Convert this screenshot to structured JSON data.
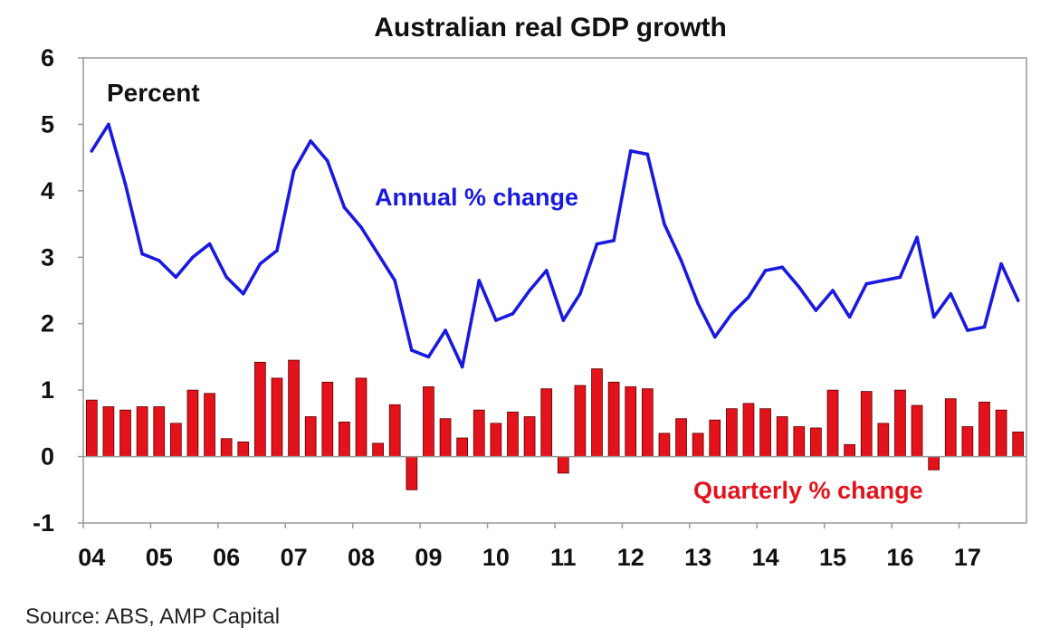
{
  "chart_data": {
    "type": "bar",
    "title": "Australian real GDP growth",
    "unit_label": "Percent",
    "source": "Source: ABS, AMP Capital",
    "ylim": [
      -1,
      6
    ],
    "yticks": [
      "-1",
      "0",
      "1",
      "2",
      "3",
      "4",
      "5",
      "6"
    ],
    "xticks": [
      "04",
      "05",
      "06",
      "07",
      "08",
      "09",
      "10",
      "11",
      "12",
      "13",
      "14",
      "15",
      "16",
      "17"
    ],
    "grid": false,
    "colors": {
      "annual": "#1a1adf",
      "quarterly": "#e3121b",
      "bar_edge": "#5a0000",
      "axis": "#999999"
    },
    "series": [
      {
        "name": "Annual % change",
        "type": "line",
        "x": [
          "2004 Q1",
          "2004 Q2",
          "2004 Q3",
          "2004 Q4",
          "2005 Q1",
          "2005 Q2",
          "2005 Q3",
          "2005 Q4",
          "2006 Q1",
          "2006 Q2",
          "2006 Q3",
          "2006 Q4",
          "2007 Q1",
          "2007 Q2",
          "2007 Q3",
          "2007 Q4",
          "2008 Q1",
          "2008 Q2",
          "2008 Q3",
          "2008 Q4",
          "2009 Q1",
          "2009 Q2",
          "2009 Q3",
          "2009 Q4",
          "2010 Q1",
          "2010 Q2",
          "2010 Q3",
          "2010 Q4",
          "2011 Q1",
          "2011 Q2",
          "2011 Q3",
          "2011 Q4",
          "2012 Q1",
          "2012 Q2",
          "2012 Q3",
          "2012 Q4",
          "2013 Q1",
          "2013 Q2",
          "2013 Q3",
          "2013 Q4",
          "2014 Q1",
          "2014 Q2",
          "2014 Q3",
          "2014 Q4",
          "2015 Q1",
          "2015 Q2",
          "2015 Q3",
          "2015 Q4",
          "2016 Q1",
          "2016 Q2",
          "2016 Q3",
          "2016 Q4",
          "2017 Q1",
          "2017 Q2",
          "2017 Q3",
          "2017 Q4"
        ],
        "values": [
          4.6,
          5.0,
          4.1,
          3.05,
          2.95,
          2.7,
          3.0,
          3.2,
          2.7,
          2.45,
          2.9,
          3.1,
          4.3,
          4.75,
          4.45,
          3.75,
          3.45,
          3.05,
          2.65,
          1.6,
          1.5,
          1.9,
          1.35,
          2.65,
          2.05,
          2.15,
          2.5,
          2.8,
          2.05,
          2.45,
          3.2,
          3.25,
          4.6,
          4.55,
          3.5,
          2.95,
          2.3,
          1.8,
          2.15,
          2.4,
          2.8,
          2.85,
          2.55,
          2.2,
          2.5,
          2.1,
          2.6,
          2.65,
          2.7,
          3.3,
          2.1,
          2.45,
          1.9,
          1.95,
          2.9,
          2.35
        ]
      },
      {
        "name": "Quarterly % change",
        "type": "bar",
        "x": [
          "2004 Q1",
          "2004 Q2",
          "2004 Q3",
          "2004 Q4",
          "2005 Q1",
          "2005 Q2",
          "2005 Q3",
          "2005 Q4",
          "2006 Q1",
          "2006 Q2",
          "2006 Q3",
          "2006 Q4",
          "2007 Q1",
          "2007 Q2",
          "2007 Q3",
          "2007 Q4",
          "2008 Q1",
          "2008 Q2",
          "2008 Q3",
          "2008 Q4",
          "2009 Q1",
          "2009 Q2",
          "2009 Q3",
          "2009 Q4",
          "2010 Q1",
          "2010 Q2",
          "2010 Q3",
          "2010 Q4",
          "2011 Q1",
          "2011 Q2",
          "2011 Q3",
          "2011 Q4",
          "2012 Q1",
          "2012 Q2",
          "2012 Q3",
          "2012 Q4",
          "2013 Q1",
          "2013 Q2",
          "2013 Q3",
          "2013 Q4",
          "2014 Q1",
          "2014 Q2",
          "2014 Q3",
          "2014 Q4",
          "2015 Q1",
          "2015 Q2",
          "2015 Q3",
          "2015 Q4",
          "2016 Q1",
          "2016 Q2",
          "2016 Q3",
          "2016 Q4",
          "2017 Q1",
          "2017 Q2",
          "2017 Q3",
          "2017 Q4"
        ],
        "values": [
          0.85,
          0.75,
          0.7,
          0.75,
          0.75,
          0.5,
          1.0,
          0.95,
          0.27,
          0.22,
          1.42,
          1.18,
          1.45,
          0.6,
          1.12,
          0.52,
          1.18,
          0.2,
          0.78,
          -0.5,
          1.05,
          0.57,
          0.28,
          0.7,
          0.5,
          0.67,
          0.6,
          1.02,
          -0.25,
          1.07,
          1.32,
          1.12,
          1.05,
          1.02,
          0.35,
          0.57,
          0.35,
          0.55,
          0.72,
          0.8,
          0.72,
          0.6,
          0.45,
          0.43,
          1.0,
          0.18,
          0.98,
          0.5,
          1.0,
          0.77,
          -0.2,
          0.87,
          0.45,
          0.82,
          0.7,
          0.37
        ]
      }
    ]
  }
}
